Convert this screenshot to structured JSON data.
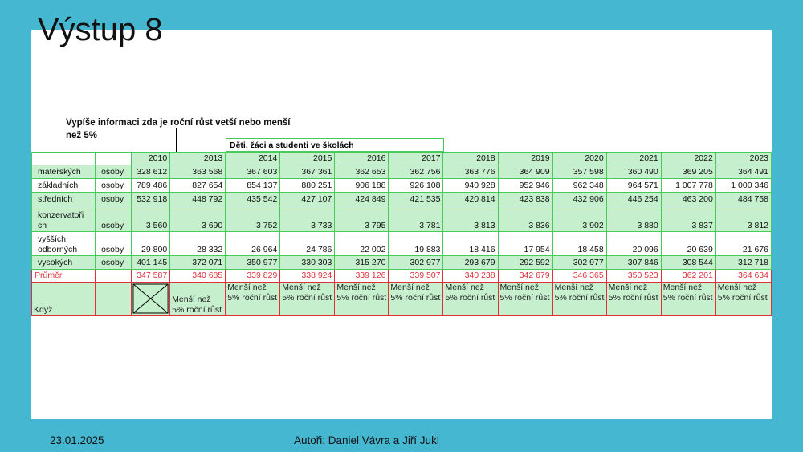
{
  "slide": {
    "title": "Výstup 8",
    "note": "Vypíše informaci  zda je roční růst vetší nebo menší než 5%",
    "table_title": "Děti, žáci a studenti ve školách"
  },
  "table": {
    "years": [
      "2010",
      "2013",
      "2014",
      "2015",
      "2016",
      "2017",
      "2018",
      "2019",
      "2020",
      "2021",
      "2022",
      "2023"
    ],
    "rows": [
      {
        "label": "mateřských",
        "unit": "osoby",
        "values": [
          "328 612",
          "363 568",
          "367 603",
          "367 361",
          "362 653",
          "362 756",
          "363 776",
          "364 909",
          "357 598",
          "360 490",
          "369 205",
          "364 491"
        ]
      },
      {
        "label": "základních",
        "unit": "osoby",
        "values": [
          "789 486",
          "827 654",
          "854 137",
          "880 251",
          "906 188",
          "926 108",
          "940 928",
          "952 946",
          "962 348",
          "964 571",
          "1 007 778",
          "1 000 346"
        ]
      },
      {
        "label": "středních",
        "unit": "osoby",
        "values": [
          "532 918",
          "448 792",
          "435 542",
          "427 107",
          "424 849",
          "421 535",
          "420 814",
          "423 838",
          "432 906",
          "446 254",
          "463 200",
          "484 758"
        ]
      },
      {
        "label": "konzervatoři ch",
        "unit": "osoby",
        "values": [
          "3 560",
          "3 690",
          "3 752",
          "3 733",
          "3 795",
          "3 781",
          "3 813",
          "3 836",
          "3 902",
          "3 880",
          "3 837",
          "3 812"
        ]
      },
      {
        "label": "vyšších odborných",
        "unit": "osoby",
        "values": [
          "29 800",
          "28 332",
          "26 964",
          "24 786",
          "22 002",
          "19 883",
          "18 416",
          "17 954",
          "18 458",
          "20 096",
          "20 639",
          "21 676"
        ]
      },
      {
        "label": "vysokých",
        "unit": "osoby",
        "values": [
          "401 145",
          "372 071",
          "350 977",
          "330 303",
          "315 270",
          "302 977",
          "293 679",
          "292 592",
          "302 977",
          "307 846",
          "308 544",
          "312 718"
        ]
      }
    ],
    "prumer": {
      "label": "Průměr",
      "values": [
        "347 587",
        "340 685",
        "339 829",
        "338 924",
        "339 126",
        "339 507",
        "340 238",
        "342 679",
        "346 365",
        "350 523",
        "362 201",
        "364 634"
      ]
    },
    "kdyz": {
      "label": "Když",
      "values": [
        "Menší než 5% roční růst",
        "Menší než 5% roční růst",
        "Menší než 5% roční růst",
        "Menší než 5% roční růst",
        "Menší než 5% roční růst",
        "Menší než 5% roční růst",
        "Menší než 5% roční růst",
        "Menší než 5% roční růst",
        "Menší než 5% roční růst",
        "Menší než 5% roční růst",
        "Menší než 5% roční růst"
      ]
    }
  },
  "footer": {
    "date": "23.01.2025",
    "authors": "Autoři: Daniel Vávra a Jiří Jukl"
  },
  "colors": {
    "frame": "#45b7d1",
    "grid_green": "#49c95a",
    "cell_green": "#c6efce",
    "alert_red": "#e0303a"
  }
}
